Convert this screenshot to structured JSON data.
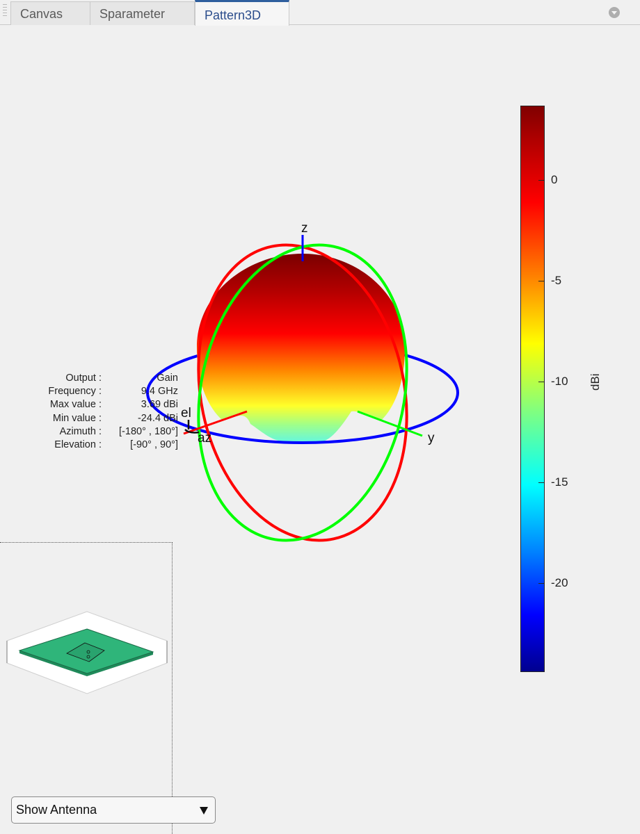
{
  "tabs": [
    {
      "label": "Canvas",
      "active": false
    },
    {
      "label": "Sparameter",
      "active": false
    },
    {
      "label": "Pattern3D",
      "active": true
    }
  ],
  "info": {
    "output_label": "Output :",
    "output_value": "Gain",
    "frequency_label": "Frequency :",
    "frequency_value": "9.4 GHz",
    "max_label": "Max value :",
    "max_value": "3.69 dBi",
    "min_label": "Min value :",
    "min_value": "-24.4 dBi",
    "azimuth_label": "Azimuth :",
    "azimuth_value": "[-180° , 180°]",
    "elevation_label": "Elevation :",
    "elevation_value": "[-90° , 90°]"
  },
  "axes": {
    "z": "z",
    "y": "y",
    "el": "el",
    "az": "az"
  },
  "colorbar": {
    "unit": "dBi",
    "ticks": [
      {
        "value": 0,
        "label": "0"
      },
      {
        "value": -5,
        "label": "-5"
      },
      {
        "value": -10,
        "label": "-10"
      },
      {
        "value": -15,
        "label": "-15"
      },
      {
        "value": -20,
        "label": "-20"
      }
    ],
    "min": -24.4,
    "max": 3.69
  },
  "display_select": {
    "value": "Show Antenna"
  },
  "colors": {
    "x_ring": "#ff0000",
    "y_ring": "#00ff00",
    "z_ring": "#0000ff",
    "antenna_substrate": "#2fb57a",
    "active_tab": "#2f5f9e"
  },
  "icons": {
    "tab_menu": "chevron-down-circle-icon",
    "select": "triangle-down-icon"
  }
}
